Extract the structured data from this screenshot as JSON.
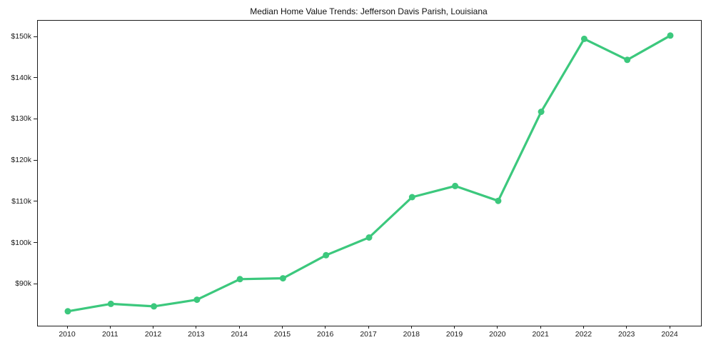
{
  "chart_data": {
    "type": "line",
    "title": "Median Home Value Trends: Jefferson Davis Parish, Louisiana",
    "xlabel": "",
    "ylabel": "",
    "x": [
      "2010",
      "2011",
      "2012",
      "2013",
      "2014",
      "2015",
      "2016",
      "2017",
      "2018",
      "2019",
      "2020",
      "2021",
      "2022",
      "2023",
      "2024"
    ],
    "series": [
      {
        "name": "Median Home Value",
        "values": [
          83500,
          85300,
          84700,
          86300,
          91300,
          91500,
          97100,
          101400,
          111200,
          113900,
          110300,
          131900,
          149600,
          144500,
          150400
        ]
      }
    ],
    "ylim": [
      80000,
      154000
    ],
    "yticks": [
      {
        "value": 90000,
        "label": "$90k"
      },
      {
        "value": 100000,
        "label": "$100k"
      },
      {
        "value": 110000,
        "label": "$110k"
      },
      {
        "value": 120000,
        "label": "$120k"
      },
      {
        "value": 130000,
        "label": "$130k"
      },
      {
        "value": 140000,
        "label": "$140k"
      },
      {
        "value": 150000,
        "label": "$150k"
      }
    ],
    "grid": false,
    "legend": null,
    "line_color": "#3cc87d",
    "text_color": "#1a1a1a",
    "spine_color": "#1c1c1c"
  }
}
